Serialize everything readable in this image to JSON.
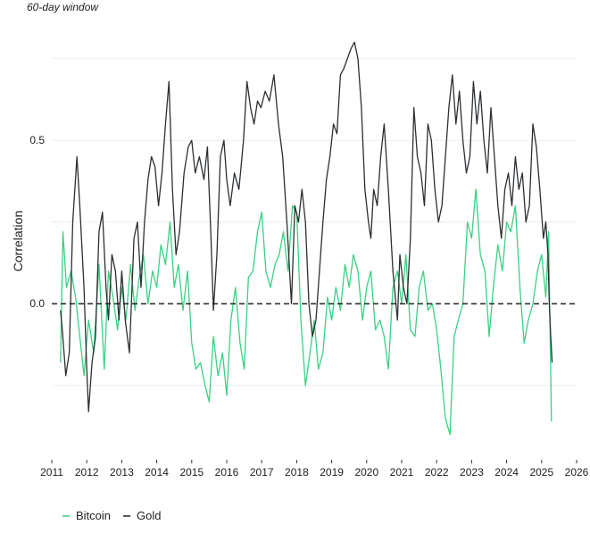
{
  "chart_data": {
    "type": "line",
    "subtitle": "60-day window",
    "ylabel": "Correlation",
    "xlabel": "",
    "xlim": [
      2011,
      2026
    ],
    "ylim": [
      -0.45,
      0.82
    ],
    "x_ticks": [
      "2011",
      "2012",
      "2013",
      "2014",
      "2015",
      "2016",
      "2017",
      "2018",
      "2019",
      "2020",
      "2021",
      "2022",
      "2023",
      "2024",
      "2025",
      "2026"
    ],
    "y_ticks": [
      "0.5",
      "0.0"
    ],
    "y_tick_values": [
      0.5,
      0.0
    ],
    "grid": true,
    "zero_line": {
      "value": 0,
      "style": "dashed"
    },
    "legend_position": "bottom-left",
    "series": [
      {
        "name": "Bitcoin",
        "color": "#3ad182",
        "x": [
          2011.25,
          2011.32,
          2011.42,
          2011.55,
          2011.68,
          2011.8,
          2011.92,
          2012.05,
          2012.2,
          2012.35,
          2012.5,
          2012.62,
          2012.75,
          2012.88,
          2013.0,
          2013.12,
          2013.25,
          2013.38,
          2013.5,
          2013.62,
          2013.75,
          2013.88,
          2014.0,
          2014.12,
          2014.25,
          2014.38,
          2014.5,
          2014.62,
          2014.75,
          2014.88,
          2015.0,
          2015.12,
          2015.25,
          2015.38,
          2015.5,
          2015.62,
          2015.75,
          2015.88,
          2016.0,
          2016.12,
          2016.25,
          2016.38,
          2016.5,
          2016.62,
          2016.75,
          2016.88,
          2017.0,
          2017.12,
          2017.25,
          2017.38,
          2017.5,
          2017.62,
          2017.75,
          2017.88,
          2018.0,
          2018.12,
          2018.25,
          2018.38,
          2018.5,
          2018.62,
          2018.75,
          2018.88,
          2019.0,
          2019.12,
          2019.25,
          2019.38,
          2019.5,
          2019.62,
          2019.75,
          2019.88,
          2020.0,
          2020.12,
          2020.25,
          2020.38,
          2020.5,
          2020.62,
          2020.75,
          2020.88,
          2021.0,
          2021.12,
          2021.25,
          2021.38,
          2021.5,
          2021.62,
          2021.75,
          2021.88,
          2022.0,
          2022.12,
          2022.25,
          2022.38,
          2022.5,
          2022.62,
          2022.75,
          2022.88,
          2023.0,
          2023.12,
          2023.25,
          2023.38,
          2023.5,
          2023.62,
          2023.75,
          2023.88,
          2024.0,
          2024.12,
          2024.25,
          2024.38,
          2024.5,
          2024.62,
          2024.75,
          2024.88,
          2025.0,
          2025.12,
          2025.2,
          2025.28
        ],
        "values": [
          -0.18,
          0.22,
          0.05,
          0.1,
          0.02,
          -0.1,
          -0.22,
          -0.05,
          -0.15,
          0.12,
          -0.2,
          0.1,
          0.02,
          -0.08,
          0.05,
          -0.05,
          0.12,
          -0.02,
          0.08,
          0.15,
          0.0,
          0.1,
          0.05,
          0.18,
          0.12,
          0.25,
          0.05,
          0.12,
          -0.02,
          0.1,
          -0.12,
          -0.2,
          -0.18,
          -0.25,
          -0.3,
          -0.1,
          -0.22,
          -0.15,
          -0.28,
          -0.05,
          0.05,
          -0.12,
          -0.2,
          0.08,
          0.1,
          0.22,
          0.28,
          0.1,
          0.05,
          0.12,
          0.15,
          0.22,
          0.1,
          0.3,
          0.28,
          -0.05,
          -0.25,
          -0.15,
          -0.05,
          -0.2,
          -0.15,
          0.02,
          -0.05,
          0.05,
          -0.02,
          0.12,
          0.05,
          0.15,
          0.1,
          -0.05,
          0.05,
          0.1,
          -0.08,
          -0.05,
          -0.1,
          -0.2,
          0.05,
          0.1,
          0.0,
          0.15,
          -0.08,
          -0.1,
          0.05,
          0.1,
          -0.02,
          0.0,
          -0.08,
          -0.2,
          -0.35,
          -0.4,
          -0.1,
          -0.05,
          0.0,
          0.25,
          0.2,
          0.35,
          0.15,
          0.1,
          -0.1,
          0.05,
          0.18,
          0.1,
          0.25,
          0.22,
          0.3,
          0.05,
          -0.12,
          -0.05,
          0.0,
          0.1,
          0.15,
          0.02,
          0.22,
          -0.36
        ]
      },
      {
        "name": "Gold",
        "color": "#2b2f33",
        "x": [
          2011.25,
          2011.3,
          2011.4,
          2011.5,
          2011.6,
          2011.72,
          2011.8,
          2011.92,
          2012.0,
          2012.05,
          2012.15,
          2012.25,
          2012.35,
          2012.45,
          2012.55,
          2012.62,
          2012.72,
          2012.82,
          2012.92,
          2013.0,
          2013.1,
          2013.22,
          2013.35,
          2013.45,
          2013.55,
          2013.65,
          2013.75,
          2013.85,
          2013.95,
          2014.05,
          2014.15,
          2014.25,
          2014.35,
          2014.45,
          2014.55,
          2014.65,
          2014.78,
          2014.9,
          2015.0,
          2015.1,
          2015.22,
          2015.35,
          2015.45,
          2015.55,
          2015.62,
          2015.72,
          2015.82,
          2015.92,
          2016.0,
          2016.1,
          2016.22,
          2016.35,
          2016.48,
          2016.58,
          2016.68,
          2016.78,
          2016.88,
          2016.98,
          2017.1,
          2017.22,
          2017.35,
          2017.48,
          2017.6,
          2017.72,
          2017.85,
          2017.95,
          2018.05,
          2018.15,
          2018.25,
          2018.35,
          2018.45,
          2018.55,
          2018.65,
          2018.75,
          2018.85,
          2018.95,
          2019.05,
          2019.15,
          2019.25,
          2019.35,
          2019.45,
          2019.55,
          2019.65,
          2019.75,
          2019.85,
          2019.95,
          2020.05,
          2020.12,
          2020.2,
          2020.3,
          2020.4,
          2020.5,
          2020.62,
          2020.75,
          2020.88,
          2020.95,
          2021.05,
          2021.15,
          2021.25,
          2021.35,
          2021.45,
          2021.55,
          2021.65,
          2021.75,
          2021.85,
          2021.95,
          2022.05,
          2022.15,
          2022.25,
          2022.35,
          2022.45,
          2022.55,
          2022.65,
          2022.75,
          2022.85,
          2022.95,
          2023.05,
          2023.15,
          2023.25,
          2023.35,
          2023.45,
          2023.55,
          2023.65,
          2023.75,
          2023.85,
          2023.95,
          2024.05,
          2024.15,
          2024.25,
          2024.35,
          2024.45,
          2024.55,
          2024.65,
          2024.75,
          2024.85,
          2024.95,
          2025.05,
          2025.12,
          2025.18,
          2025.22,
          2025.26,
          2025.3
        ],
        "values": [
          -0.02,
          -0.08,
          -0.22,
          -0.15,
          0.25,
          0.45,
          0.3,
          0.05,
          -0.2,
          -0.33,
          -0.18,
          -0.1,
          0.22,
          0.28,
          0.05,
          -0.05,
          0.15,
          0.1,
          -0.05,
          0.1,
          -0.05,
          -0.15,
          0.2,
          0.25,
          0.05,
          0.25,
          0.38,
          0.45,
          0.42,
          0.3,
          0.4,
          0.55,
          0.68,
          0.35,
          0.15,
          0.22,
          0.4,
          0.48,
          0.5,
          0.4,
          0.45,
          0.38,
          0.48,
          0.2,
          -0.02,
          0.15,
          0.45,
          0.5,
          0.38,
          0.3,
          0.4,
          0.35,
          0.5,
          0.68,
          0.6,
          0.55,
          0.62,
          0.6,
          0.65,
          0.62,
          0.7,
          0.55,
          0.45,
          0.25,
          0.0,
          0.3,
          0.25,
          0.35,
          0.25,
          0.0,
          -0.1,
          -0.05,
          0.1,
          0.25,
          0.38,
          0.45,
          0.55,
          0.52,
          0.7,
          0.72,
          0.75,
          0.78,
          0.8,
          0.75,
          0.6,
          0.35,
          0.25,
          0.2,
          0.35,
          0.3,
          0.45,
          0.55,
          0.35,
          0.1,
          -0.05,
          0.15,
          0.05,
          0.0,
          0.2,
          0.6,
          0.45,
          0.4,
          0.3,
          0.55,
          0.5,
          0.35,
          0.25,
          0.3,
          0.45,
          0.6,
          0.7,
          0.55,
          0.65,
          0.5,
          0.4,
          0.45,
          0.68,
          0.55,
          0.65,
          0.5,
          0.4,
          0.6,
          0.45,
          0.3,
          0.2,
          0.35,
          0.4,
          0.3,
          0.45,
          0.35,
          0.4,
          0.25,
          0.3,
          0.55,
          0.48,
          0.35,
          0.2,
          0.25,
          0.15,
          0.0,
          -0.1,
          -0.18
        ]
      }
    ]
  }
}
